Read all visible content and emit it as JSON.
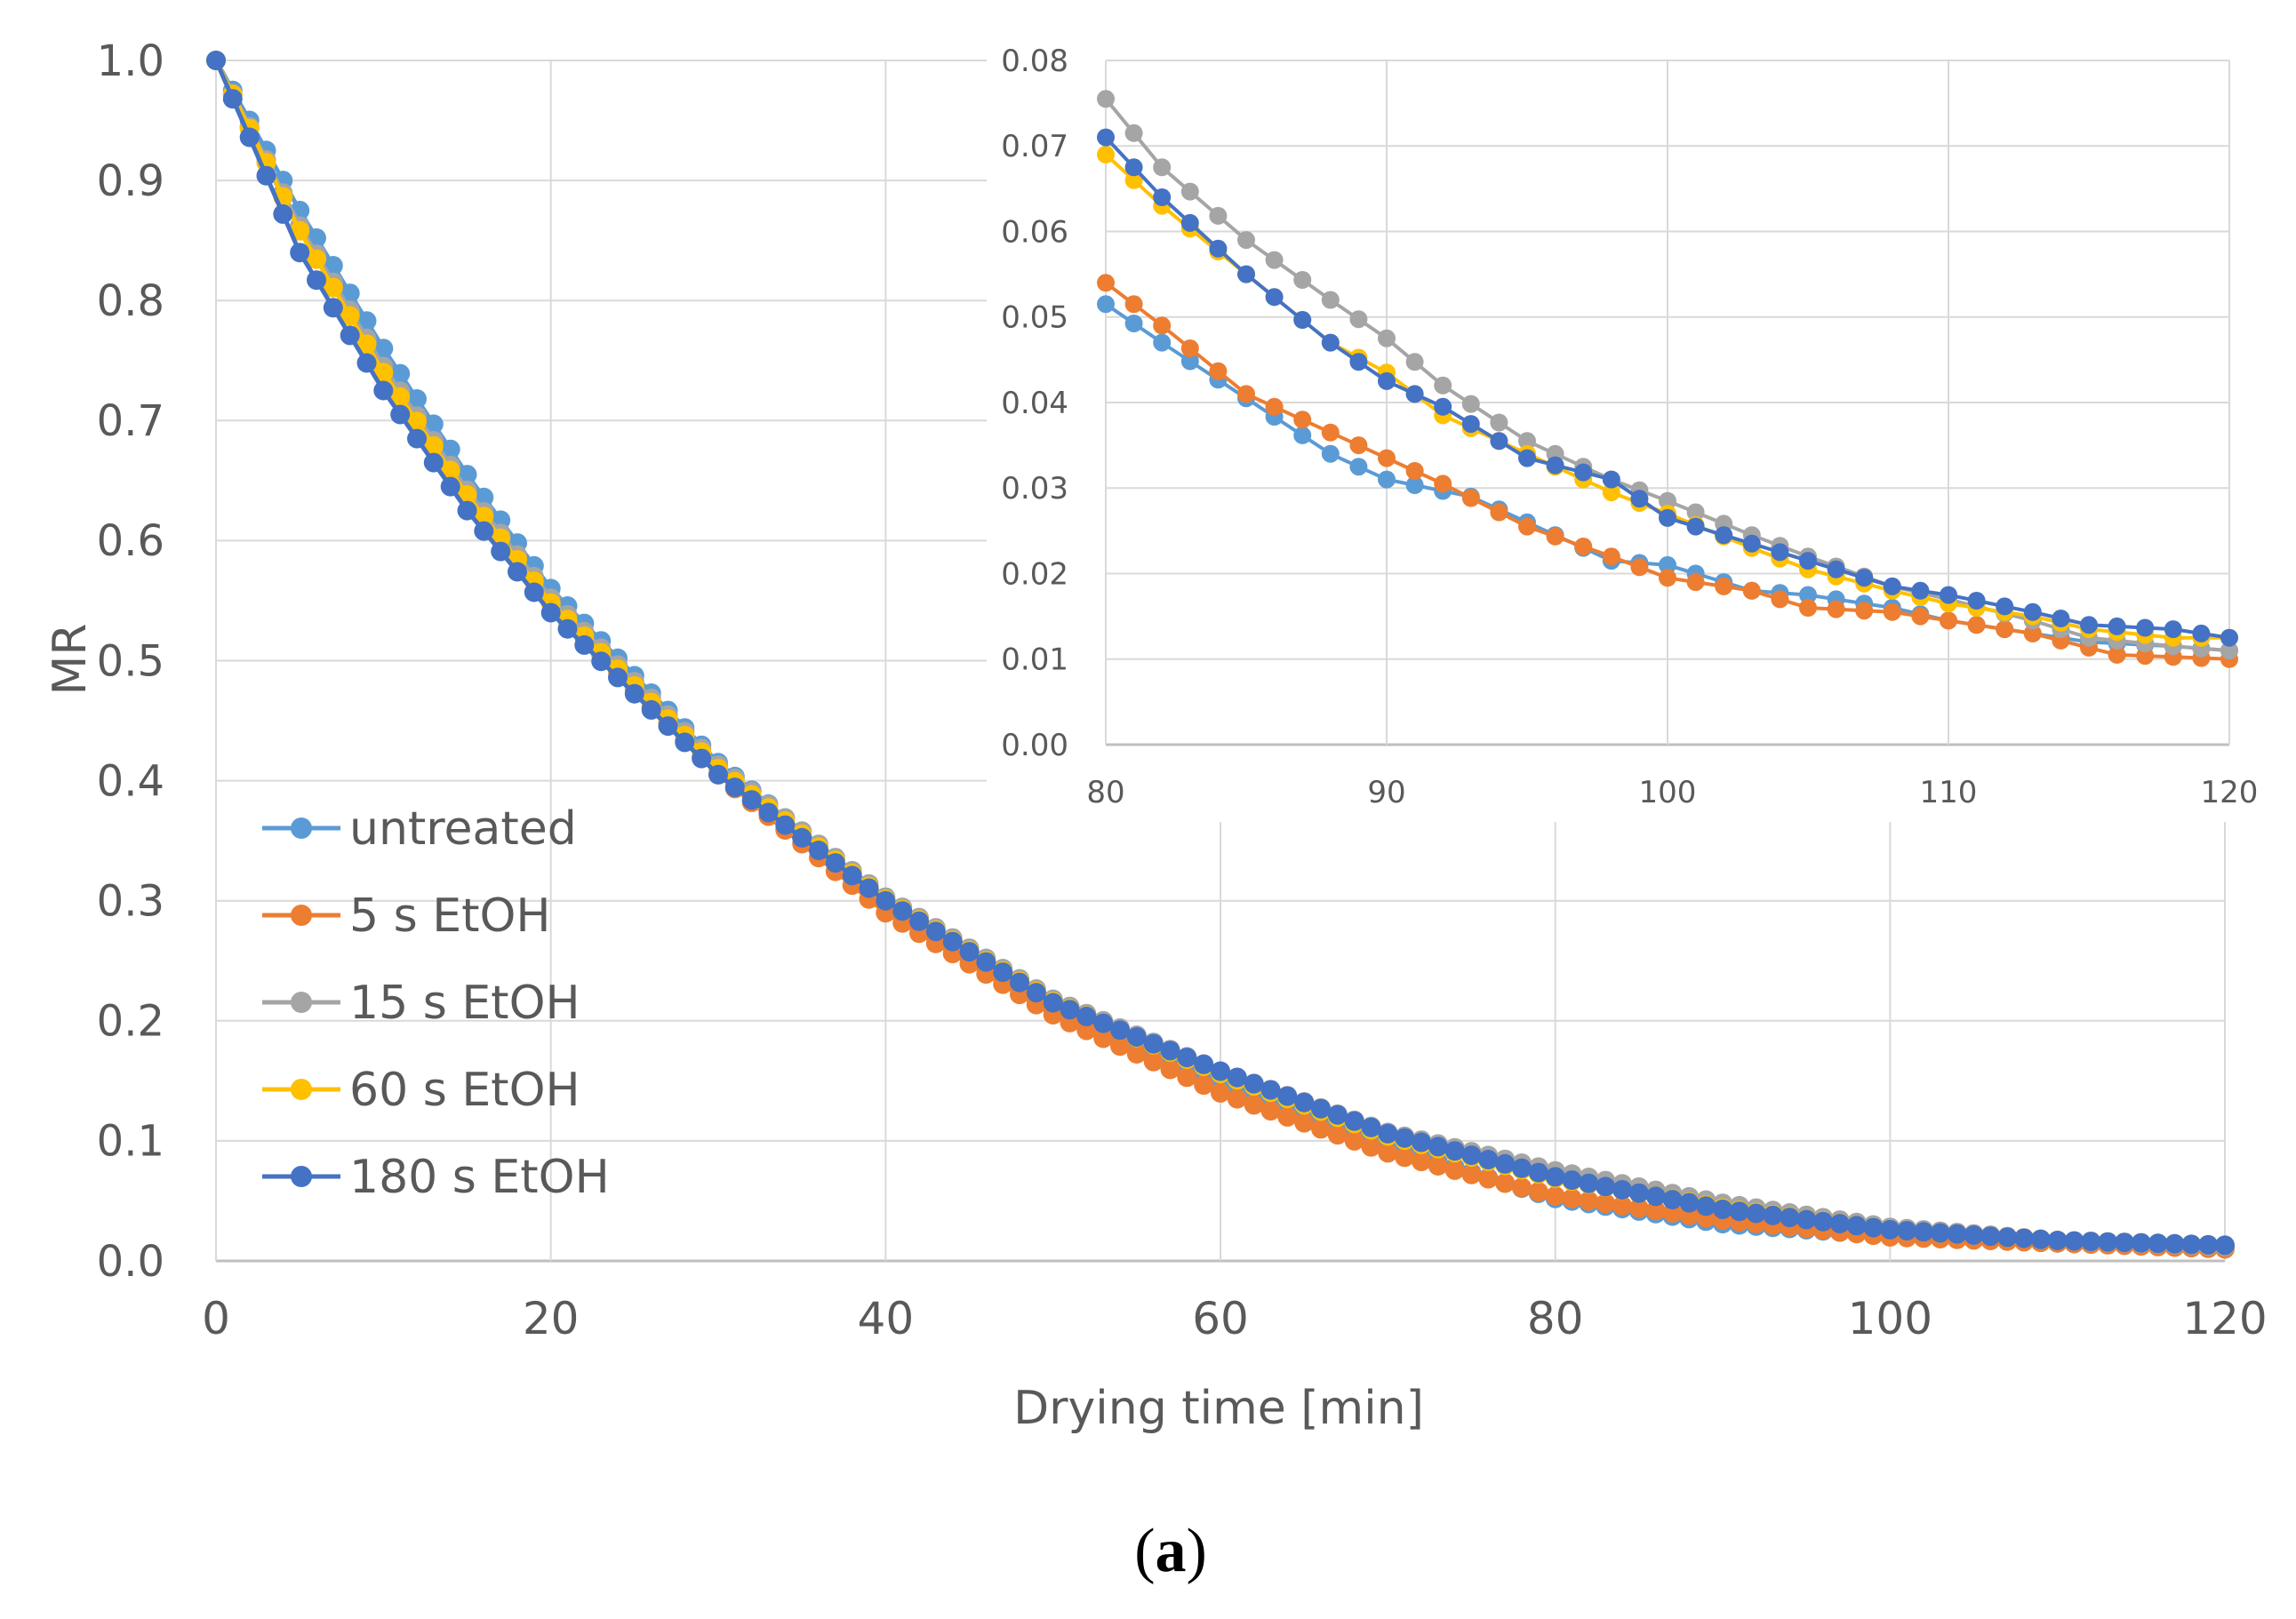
{
  "chart_data": [
    {
      "type": "line",
      "name": "main",
      "xlabel": "Drying time [min]",
      "ylabel": "MR",
      "xlim": [
        0,
        120
      ],
      "ylim": [
        0,
        1.0
      ],
      "x_ticks": [
        "0",
        "20",
        "40",
        "60",
        "80",
        "100",
        "120"
      ],
      "y_ticks": [
        "0.0",
        "0.1",
        "0.2",
        "0.3",
        "0.4",
        "0.5",
        "0.6",
        "0.7",
        "0.8",
        "0.9",
        "1.0"
      ],
      "x_step": 1,
      "series": [
        {
          "name": "untreated",
          "color": "#5b9bd5",
          "anchors": [
            [
              0,
              1.0
            ],
            [
              5,
              0.875
            ],
            [
              10,
              0.76
            ],
            [
              15,
              0.655
            ],
            [
              20,
              0.56
            ],
            [
              30,
              0.415
            ],
            [
              40,
              0.3
            ],
            [
              50,
              0.215
            ],
            [
              60,
              0.15
            ],
            [
              70,
              0.095
            ],
            [
              80,
              0.052
            ],
            [
              90,
              0.031
            ],
            [
              100,
              0.021
            ],
            [
              110,
              0.015
            ],
            [
              120,
              0.011
            ]
          ]
        },
        {
          "name": "5 s EtOH",
          "color": "#ed7d31",
          "anchors": [
            [
              0,
              1.0
            ],
            [
              5,
              0.86
            ],
            [
              10,
              0.74
            ],
            [
              15,
              0.64
            ],
            [
              20,
              0.548
            ],
            [
              30,
              0.405
            ],
            [
              40,
              0.29
            ],
            [
              50,
              0.205
            ],
            [
              60,
              0.14
            ],
            [
              70,
              0.09
            ],
            [
              80,
              0.054
            ],
            [
              90,
              0.034
            ],
            [
              100,
              0.02
            ],
            [
              110,
              0.015
            ],
            [
              120,
              0.01
            ]
          ]
        },
        {
          "name": "15 s EtOH",
          "color": "#a5a5a5",
          "anchors": [
            [
              0,
              1.0
            ],
            [
              5,
              0.862
            ],
            [
              10,
              0.745
            ],
            [
              15,
              0.642
            ],
            [
              20,
              0.552
            ],
            [
              30,
              0.413
            ],
            [
              40,
              0.303
            ],
            [
              50,
              0.218
            ],
            [
              60,
              0.158
            ],
            [
              70,
              0.107
            ],
            [
              80,
              0.075
            ],
            [
              90,
              0.048
            ],
            [
              100,
              0.028
            ],
            [
              110,
              0.017
            ],
            [
              120,
              0.012
            ]
          ]
        },
        {
          "name": "60 s EtOH",
          "color": "#ffc000",
          "anchors": [
            [
              0,
              1.0
            ],
            [
              5,
              0.858
            ],
            [
              10,
              0.74
            ],
            [
              15,
              0.638
            ],
            [
              20,
              0.548
            ],
            [
              30,
              0.41
            ],
            [
              40,
              0.301
            ],
            [
              50,
              0.216
            ],
            [
              60,
              0.156
            ],
            [
              70,
              0.104
            ],
            [
              80,
              0.069
            ],
            [
              90,
              0.044
            ],
            [
              100,
              0.026
            ],
            [
              110,
              0.017
            ],
            [
              120,
              0.013
            ]
          ]
        },
        {
          "name": "180 s EtOH",
          "color": "#4472c4",
          "anchors": [
            [
              0,
              1.0
            ],
            [
              5,
              0.84
            ],
            [
              10,
              0.725
            ],
            [
              15,
              0.625
            ],
            [
              20,
              0.54
            ],
            [
              30,
              0.405
            ],
            [
              40,
              0.3
            ],
            [
              50,
              0.215
            ],
            [
              60,
              0.158
            ],
            [
              70,
              0.106
            ],
            [
              80,
              0.07
            ],
            [
              90,
              0.043
            ],
            [
              100,
              0.026
            ],
            [
              110,
              0.017
            ],
            [
              120,
              0.013
            ]
          ]
        }
      ]
    },
    {
      "type": "line",
      "name": "inset",
      "xlim": [
        80,
        120
      ],
      "ylim": [
        0,
        0.08
      ],
      "x_ticks": [
        "80",
        "90",
        "100",
        "110",
        "120"
      ],
      "y_ticks": [
        "0.00",
        "0.01",
        "0.02",
        "0.03",
        "0.04",
        "0.05",
        "0.06",
        "0.07",
        "0.08"
      ],
      "x_step": 1,
      "series": [
        {
          "name": "untreated",
          "color": "#5b9bd5",
          "anchors": [
            [
              80,
              0.0515
            ],
            [
              82,
              0.047
            ],
            [
              85,
              0.0405
            ],
            [
              88,
              0.034
            ],
            [
              90,
              0.031
            ],
            [
              93,
              0.029
            ],
            [
              95,
              0.026
            ],
            [
              98,
              0.0215
            ],
            [
              100,
              0.021
            ],
            [
              103,
              0.018
            ],
            [
              105,
              0.0175
            ],
            [
              108,
              0.016
            ],
            [
              110,
              0.0145
            ],
            [
              113,
              0.013
            ],
            [
              115,
              0.012
            ],
            [
              118,
              0.0115
            ],
            [
              120,
              0.011
            ]
          ]
        },
        {
          "name": "5 s EtOH",
          "color": "#ed7d31",
          "anchors": [
            [
              80,
              0.054
            ],
            [
              82,
              0.049
            ],
            [
              85,
              0.041
            ],
            [
              88,
              0.0365
            ],
            [
              90,
              0.0335
            ],
            [
              92,
              0.0305
            ],
            [
              95,
              0.0255
            ],
            [
              98,
              0.022
            ],
            [
              100,
              0.0195
            ],
            [
              103,
              0.018
            ],
            [
              105,
              0.016
            ],
            [
              108,
              0.0155
            ],
            [
              110,
              0.0145
            ],
            [
              113,
              0.013
            ],
            [
              116,
              0.0105
            ],
            [
              120,
              0.01
            ]
          ]
        },
        {
          "name": "15 s EtOH",
          "color": "#a5a5a5",
          "anchors": [
            [
              80,
              0.0755
            ],
            [
              82,
              0.0675
            ],
            [
              85,
              0.059
            ],
            [
              88,
              0.052
            ],
            [
              90,
              0.0475
            ],
            [
              92,
              0.042
            ],
            [
              95,
              0.0355
            ],
            [
              98,
              0.031
            ],
            [
              100,
              0.0285
            ],
            [
              103,
              0.0245
            ],
            [
              105,
              0.022
            ],
            [
              108,
              0.0185
            ],
            [
              110,
              0.017
            ],
            [
              113,
              0.0145
            ],
            [
              115,
              0.0125
            ],
            [
              118,
              0.0115
            ],
            [
              120,
              0.011
            ]
          ]
        },
        {
          "name": "60 s EtOH",
          "color": "#ffc000",
          "anchors": [
            [
              80,
              0.069
            ],
            [
              82,
              0.063
            ],
            [
              85,
              0.055
            ],
            [
              88,
              0.047
            ],
            [
              90,
              0.0435
            ],
            [
              92,
              0.0385
            ],
            [
              95,
              0.034
            ],
            [
              98,
              0.0295
            ],
            [
              100,
              0.027
            ],
            [
              103,
              0.023
            ],
            [
              105,
              0.0205
            ],
            [
              108,
              0.018
            ],
            [
              110,
              0.0165
            ],
            [
              113,
              0.015
            ],
            [
              115,
              0.0135
            ],
            [
              118,
              0.0125
            ],
            [
              120,
              0.0125
            ]
          ]
        },
        {
          "name": "180 s EtOH",
          "color": "#4472c4",
          "anchors": [
            [
              80,
              0.071
            ],
            [
              82,
              0.064
            ],
            [
              85,
              0.055
            ],
            [
              88,
              0.047
            ],
            [
              90,
              0.0425
            ],
            [
              92,
              0.0395
            ],
            [
              95,
              0.0335
            ],
            [
              98,
              0.031
            ],
            [
              100,
              0.0265
            ],
            [
              103,
              0.0235
            ],
            [
              105,
              0.0215
            ],
            [
              108,
              0.0185
            ],
            [
              110,
              0.0175
            ],
            [
              113,
              0.0155
            ],
            [
              115,
              0.014
            ],
            [
              118,
              0.0135
            ],
            [
              120,
              0.0125
            ]
          ]
        }
      ]
    }
  ],
  "legend": [
    "untreated",
    "5 s EtOH",
    "15 s EtOH",
    "60 s EtOH",
    "180 s EtOH"
  ],
  "caption": {
    "open": "(",
    "letter": "a",
    "close": ")"
  }
}
